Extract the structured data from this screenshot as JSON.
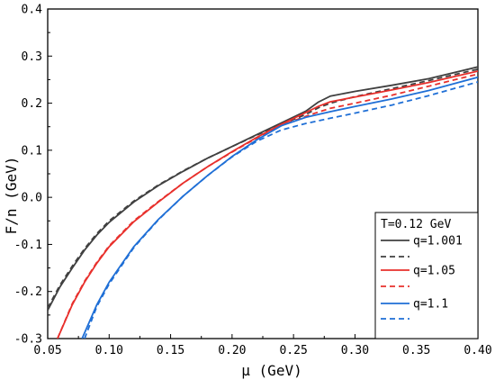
{
  "chart_data": {
    "type": "line",
    "title": "",
    "xlabel": "μ (GeV)",
    "ylabel": "F/n (GeV)",
    "xlim": [
      0.05,
      0.4
    ],
    "ylim": [
      -0.3,
      0.4
    ],
    "xticks": [
      0.05,
      0.1,
      0.15,
      0.2,
      0.25,
      0.3,
      0.35,
      0.4
    ],
    "yticks": [
      -0.3,
      -0.2,
      -0.1,
      0.0,
      0.1,
      0.2,
      0.3,
      0.4
    ],
    "xtick_labels": [
      "0.05",
      "0.10",
      "0.15",
      "0.20",
      "0.25",
      "0.30",
      "0.35",
      "0.40"
    ],
    "ytick_labels": [
      "-0.3",
      "-0.2",
      "-0.1",
      "0.0",
      "0.1",
      "0.2",
      "0.3",
      "0.4"
    ],
    "grid": false,
    "legend": {
      "placement": "bottom-right",
      "title": "T=0.12 GeV",
      "entries": [
        "q=1.001",
        "",
        "q=1.05",
        "",
        "q=1.1",
        ""
      ]
    },
    "series": [
      {
        "name": "q=1.001",
        "color": "#404040",
        "dash": "solid",
        "x": [
          0.05,
          0.06,
          0.07,
          0.08,
          0.09,
          0.1,
          0.12,
          0.14,
          0.16,
          0.18,
          0.2,
          0.22,
          0.24,
          0.26,
          0.27,
          0.28,
          0.3,
          0.33,
          0.36,
          0.4
        ],
        "y": [
          -0.24,
          -0.19,
          -0.15,
          -0.112,
          -0.08,
          -0.053,
          -0.01,
          0.025,
          0.055,
          0.083,
          0.108,
          0.133,
          0.158,
          0.183,
          0.202,
          0.215,
          0.225,
          0.238,
          0.252,
          0.277
        ]
      },
      {
        "name": "",
        "color": "#404040",
        "dash": "dashed",
        "x": [
          0.05,
          0.06,
          0.07,
          0.08,
          0.09,
          0.1,
          0.12,
          0.14,
          0.16,
          0.18,
          0.2,
          0.22,
          0.24,
          0.26,
          0.27,
          0.28,
          0.3,
          0.33,
          0.36,
          0.4
        ],
        "y": [
          -0.235,
          -0.186,
          -0.146,
          -0.109,
          -0.077,
          -0.05,
          -0.008,
          0.026,
          0.056,
          0.083,
          0.108,
          0.132,
          0.155,
          0.176,
          0.19,
          0.2,
          0.214,
          0.231,
          0.248,
          0.272
        ]
      },
      {
        "name": "q=1.05",
        "color": "#e8302c",
        "dash": "solid",
        "x": [
          0.058,
          0.07,
          0.08,
          0.09,
          0.1,
          0.12,
          0.14,
          0.16,
          0.18,
          0.2,
          0.22,
          0.24,
          0.26,
          0.27,
          0.28,
          0.3,
          0.33,
          0.36,
          0.4
        ],
        "y": [
          -0.3,
          -0.228,
          -0.18,
          -0.14,
          -0.105,
          -0.052,
          -0.01,
          0.03,
          0.065,
          0.097,
          0.127,
          0.155,
          0.18,
          0.193,
          0.203,
          0.213,
          0.228,
          0.244,
          0.268
        ]
      },
      {
        "name": "",
        "color": "#e8302c",
        "dash": "dashed",
        "x": [
          0.058,
          0.07,
          0.08,
          0.09,
          0.1,
          0.12,
          0.14,
          0.16,
          0.18,
          0.2,
          0.22,
          0.24,
          0.26,
          0.27,
          0.28,
          0.3,
          0.33,
          0.36,
          0.4
        ],
        "y": [
          -0.3,
          -0.226,
          -0.178,
          -0.138,
          -0.103,
          -0.05,
          -0.009,
          0.03,
          0.065,
          0.096,
          0.126,
          0.153,
          0.172,
          0.181,
          0.189,
          0.2,
          0.217,
          0.236,
          0.262
        ]
      },
      {
        "name": "q=1.1",
        "color": "#1f6fd6",
        "dash": "solid",
        "x": [
          0.078,
          0.09,
          0.1,
          0.12,
          0.14,
          0.16,
          0.18,
          0.2,
          0.22,
          0.24,
          0.26,
          0.28,
          0.3,
          0.33,
          0.36,
          0.4
        ],
        "y": [
          -0.3,
          -0.228,
          -0.18,
          -0.105,
          -0.047,
          0.002,
          0.046,
          0.087,
          0.122,
          0.152,
          0.17,
          0.182,
          0.193,
          0.209,
          0.227,
          0.255
        ]
      },
      {
        "name": "",
        "color": "#1f6fd6",
        "dash": "dashed",
        "x": [
          0.08,
          0.09,
          0.1,
          0.12,
          0.14,
          0.16,
          0.18,
          0.2,
          0.22,
          0.24,
          0.26,
          0.28,
          0.3,
          0.33,
          0.36,
          0.4
        ],
        "y": [
          -0.3,
          -0.232,
          -0.184,
          -0.107,
          -0.048,
          0.002,
          0.046,
          0.086,
          0.119,
          0.143,
          0.157,
          0.168,
          0.179,
          0.196,
          0.216,
          0.245
        ]
      }
    ]
  }
}
